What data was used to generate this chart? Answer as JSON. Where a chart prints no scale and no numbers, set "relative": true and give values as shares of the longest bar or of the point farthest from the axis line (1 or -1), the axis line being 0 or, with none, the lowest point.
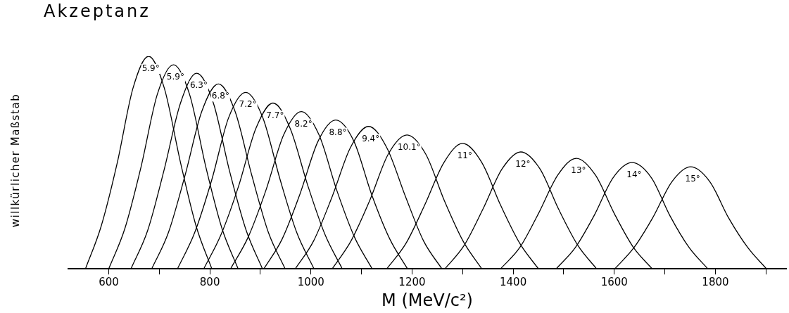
{
  "chart_data": {
    "type": "line",
    "title": "Akzeptanz",
    "xlabel": "M (MeV/c²)",
    "ylabel": "willkürlicher Maßstab",
    "relative": true,
    "xlim": [
      520,
      1940
    ],
    "xticks": [
      600,
      {
        "value": 700,
        "label": null
      },
      800,
      {
        "value": 900,
        "label": null
      },
      1000,
      {
        "value": 1100,
        "label": null
      },
      1200,
      {
        "value": 1300,
        "label": null
      },
      1400,
      {
        "value": 1500,
        "label": null
      },
      1600,
      {
        "value": 1700,
        "label": null
      },
      1800,
      {
        "value": 1900,
        "label": null
      }
    ],
    "grid": false,
    "legend": false,
    "marker": "none",
    "line_style": "solid",
    "series": [
      {
        "name": "5.9°",
        "color": "#000000",
        "x": [
          554,
          585,
          617,
          648,
          679,
          710,
          742,
          773,
          804
        ],
        "values": [
          0,
          0.2,
          0.5,
          0.85,
          1,
          0.85,
          0.5,
          0.2,
          0
        ]
      },
      {
        "name": "5.9°",
        "color": "#000000",
        "x": [
          600,
          632,
          664,
          696,
          728,
          760,
          792,
          824,
          856
        ],
        "values": [
          0,
          0.19,
          0.48,
          0.82,
          0.96,
          0.82,
          0.48,
          0.19,
          0
        ]
      },
      {
        "name": "6.3°",
        "color": "#000000",
        "x": [
          644,
          677,
          709,
          742,
          774,
          807,
          839,
          872,
          904
        ],
        "values": [
          0,
          0.18,
          0.46,
          0.78,
          0.92,
          0.78,
          0.46,
          0.18,
          0
        ]
      },
      {
        "name": "6.8°",
        "color": "#000000",
        "x": [
          685,
          718,
          751,
          784,
          817,
          850,
          883,
          916,
          949
        ],
        "values": [
          0,
          0.17,
          0.44,
          0.74,
          0.87,
          0.74,
          0.44,
          0.17,
          0
        ]
      },
      {
        "name": "7.2°",
        "color": "#000000",
        "x": [
          736,
          770,
          804,
          837,
          871,
          905,
          939,
          972,
          1006
        ],
        "values": [
          0,
          0.17,
          0.42,
          0.71,
          0.83,
          0.71,
          0.42,
          0.17,
          0
        ]
      },
      {
        "name": "7.7°",
        "color": "#000000",
        "x": [
          788,
          822,
          857,
          891,
          925,
          959,
          994,
          1028,
          1062
        ],
        "values": [
          0,
          0.16,
          0.39,
          0.66,
          0.78,
          0.66,
          0.39,
          0.16,
          0
        ]
      },
      {
        "name": "8.2°",
        "color": "#000000",
        "x": [
          841,
          876,
          911,
          946,
          981,
          1016,
          1051,
          1086,
          1121
        ],
        "values": [
          0,
          0.15,
          0.37,
          0.63,
          0.74,
          0.63,
          0.37,
          0.15,
          0
        ]
      },
      {
        "name": "8.8°",
        "color": "#000000",
        "x": [
          907,
          943,
          978,
          1014,
          1049,
          1085,
          1120,
          1156,
          1191
        ],
        "values": [
          0,
          0.14,
          0.35,
          0.6,
          0.7,
          0.6,
          0.35,
          0.14,
          0
        ]
      },
      {
        "name": "9.4°",
        "color": "#000000",
        "x": [
          969,
          1005,
          1042,
          1078,
          1114,
          1150,
          1187,
          1223,
          1259
        ],
        "values": [
          0,
          0.13,
          0.34,
          0.57,
          0.67,
          0.57,
          0.34,
          0.13,
          0
        ]
      },
      {
        "name": "10.1°",
        "color": "#000000",
        "x": [
          1042,
          1079,
          1116,
          1153,
          1190,
          1227,
          1264,
          1301,
          1338
        ],
        "values": [
          0,
          0.13,
          0.32,
          0.54,
          0.63,
          0.54,
          0.32,
          0.13,
          0
        ]
      },
      {
        "name": "11°",
        "color": "#000000",
        "x": [
          1150,
          1188,
          1225,
          1263,
          1300,
          1338,
          1375,
          1413,
          1450
        ],
        "values": [
          0,
          0.12,
          0.3,
          0.5,
          0.59,
          0.5,
          0.3,
          0.12,
          0
        ]
      },
      {
        "name": "12°",
        "color": "#000000",
        "x": [
          1265,
          1303,
          1340,
          1378,
          1415,
          1453,
          1490,
          1528,
          1565
        ],
        "values": [
          0,
          0.11,
          0.28,
          0.47,
          0.55,
          0.47,
          0.28,
          0.11,
          0
        ]
      },
      {
        "name": "13°",
        "color": "#000000",
        "x": [
          1375,
          1413,
          1450,
          1488,
          1525,
          1563,
          1600,
          1638,
          1675
        ],
        "values": [
          0,
          0.1,
          0.26,
          0.44,
          0.52,
          0.44,
          0.26,
          0.1,
          0
        ]
      },
      {
        "name": "14°",
        "color": "#000000",
        "x": [
          1485,
          1523,
          1560,
          1598,
          1635,
          1673,
          1710,
          1748,
          1785
        ],
        "values": [
          0,
          0.1,
          0.25,
          0.43,
          0.5,
          0.43,
          0.25,
          0.1,
          0
        ]
      },
      {
        "name": "15°",
        "color": "#000000",
        "x": [
          1601,
          1639,
          1676,
          1714,
          1751,
          1789,
          1826,
          1864,
          1901
        ],
        "values": [
          0,
          0.1,
          0.24,
          0.41,
          0.48,
          0.41,
          0.24,
          0.1,
          0
        ]
      }
    ]
  }
}
